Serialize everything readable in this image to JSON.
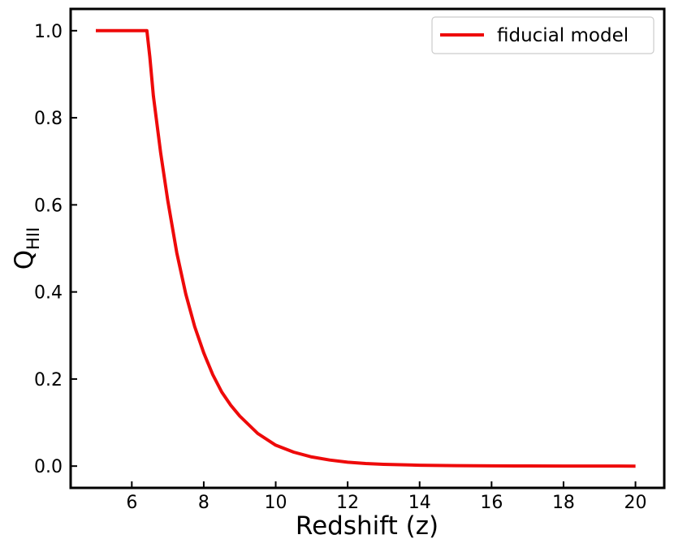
{
  "chart_data": {
    "type": "line",
    "xlabel": "Redshift (z)",
    "ylabel": "Q",
    "ylabel_subscript": "HII",
    "xlim": [
      4.3,
      20.8
    ],
    "ylim": [
      -0.05,
      1.05
    ],
    "xticks": [
      6,
      8,
      10,
      12,
      14,
      16,
      18,
      20
    ],
    "xtick_labels": [
      "6",
      "8",
      "10",
      "12",
      "14",
      "16",
      "18",
      "20"
    ],
    "yticks": [
      0.0,
      0.2,
      0.4,
      0.6,
      0.8,
      1.0
    ],
    "ytick_labels": [
      "0.0",
      "0.2",
      "0.4",
      "0.6",
      "0.8",
      "1.0"
    ],
    "grid": false,
    "legend_position": "upper right",
    "series": [
      {
        "name": "fiducial model",
        "color": "#ee0a0a",
        "x": [
          5.0,
          6.0,
          6.42,
          6.5,
          6.6,
          6.8,
          7.0,
          7.25,
          7.5,
          7.75,
          8.0,
          8.25,
          8.5,
          8.75,
          9.0,
          9.5,
          10.0,
          10.5,
          11.0,
          11.5,
          12.0,
          12.5,
          13.0,
          14.0,
          15.0,
          16.0,
          17.0,
          18.0,
          19.0,
          20.0
        ],
        "y": [
          1.0,
          1.0,
          1.0,
          0.94,
          0.85,
          0.72,
          0.61,
          0.49,
          0.395,
          0.32,
          0.26,
          0.21,
          0.17,
          0.14,
          0.115,
          0.075,
          0.048,
          0.032,
          0.021,
          0.014,
          0.009,
          0.006,
          0.004,
          0.002,
          0.001,
          0.0005,
          0.0003,
          0.0002,
          0.0001,
          0.0
        ]
      }
    ]
  }
}
